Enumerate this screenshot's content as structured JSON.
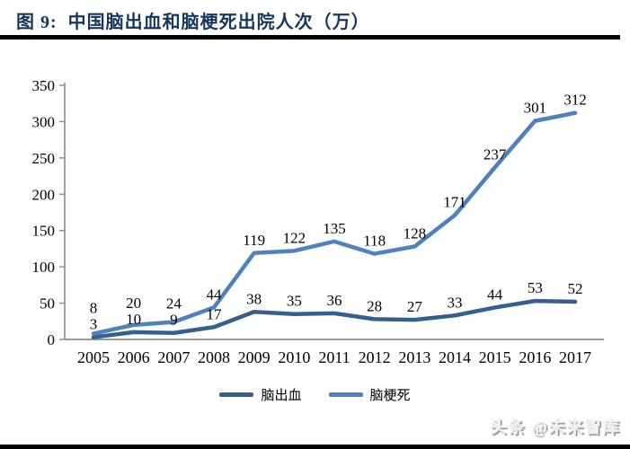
{
  "figure": {
    "title": "图 9:  中国脑出血和脑梗死出院人次（万）",
    "watermark": "头条 @未来智库"
  },
  "chart_data": {
    "type": "line",
    "title": "中国脑出血和脑梗死出院人次（万）",
    "categories": [
      "2005",
      "2006",
      "2007",
      "2008",
      "2009",
      "2010",
      "2011",
      "2012",
      "2013",
      "2014",
      "2015",
      "2016",
      "2017"
    ],
    "series": [
      {
        "name": "脑出血",
        "color": "#365F91",
        "values": [
          3,
          10,
          9,
          17,
          38,
          35,
          36,
          28,
          27,
          33,
          44,
          53,
          52
        ]
      },
      {
        "name": "脑梗死",
        "color": "#4F81BD",
        "values": [
          8,
          20,
          24,
          44,
          119,
          122,
          135,
          118,
          128,
          171,
          237,
          301,
          312
        ]
      }
    ],
    "ylim": [
      0,
      350
    ],
    "ytick_step": 50,
    "grid": false,
    "legend_position": "bottom",
    "show_data_labels": true,
    "axis_color": "#8C8C8C",
    "label_color": "#000000"
  }
}
